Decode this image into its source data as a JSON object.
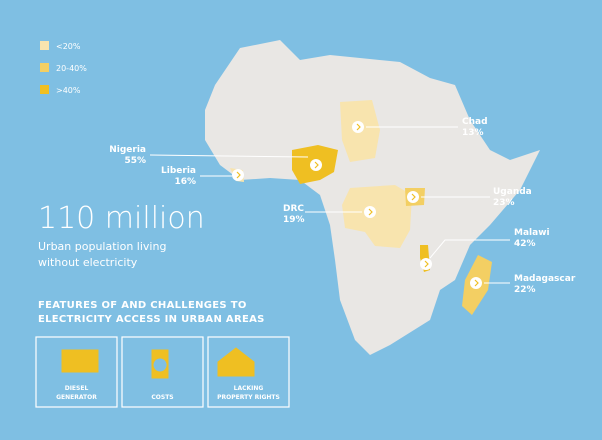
{
  "legend": [
    {
      "label": "<20%",
      "color": "#f8e4ae"
    },
    {
      "label": "20-40%",
      "color": "#f3cf63"
    },
    {
      "label": ">40%",
      "color": "#efbf22"
    }
  ],
  "headline": {
    "value": "110 million",
    "text": [
      "Urban population living",
      "without electricity"
    ]
  },
  "countries": [
    {
      "name": "Chad",
      "value": "13%",
      "color": "#f8e4ae"
    },
    {
      "name": "Nigeria",
      "value": "55%",
      "color": "#efbf22"
    },
    {
      "name": "Liberia",
      "value": "16%",
      "color": "#f8e4ae"
    },
    {
      "name": "DRC",
      "value": "19%",
      "color": "#f8e4ae"
    },
    {
      "name": "Uganda",
      "value": "23%",
      "color": "#f3cf63"
    },
    {
      "name": "Malawi",
      "value": "42%",
      "color": "#efbf22"
    },
    {
      "name": "Madagascar",
      "value": "22%",
      "color": "#f3cf63"
    }
  ],
  "features": {
    "title": [
      "FEATURES OF AND CHALLENGES TO",
      "ELECTRICITY ACCESS IN URBAN AREAS"
    ],
    "items": [
      {
        "label": [
          "DIESEL",
          "GENERATOR"
        ]
      },
      {
        "label": [
          "COSTS"
        ]
      },
      {
        "label": [
          "LACKING",
          "PROPERTY RIGHTS"
        ]
      }
    ]
  }
}
